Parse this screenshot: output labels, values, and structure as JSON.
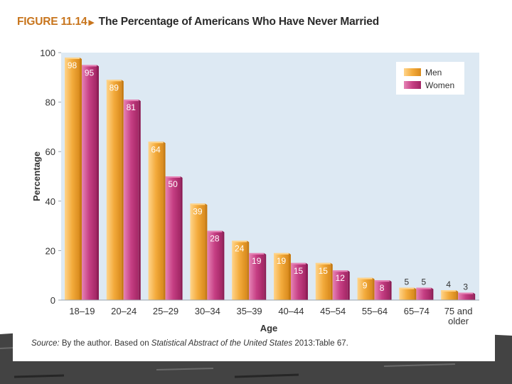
{
  "figure": {
    "label": "FIGURE 11.14",
    "title": "The Percentage of Americans Who Have Never Married"
  },
  "source": {
    "lead": "Source:",
    "text_before": " By the author. Based on ",
    "publication": "Statistical Abstract of the United States",
    "text_after": " 2013:Table 67."
  },
  "colors": {
    "plot_bg": "#dde9f3",
    "men": "#f0a233",
    "men_light": "#ffd48a",
    "men_dark": "#c77c14",
    "women": "#c2387e",
    "women_light": "#e684b6",
    "women_dark": "#8f1f57"
  },
  "chart_data": {
    "type": "bar",
    "xlabel": "Age",
    "ylabel": "Percentage",
    "ylim": [
      0,
      100
    ],
    "yticks": [
      0,
      20,
      40,
      60,
      80,
      100
    ],
    "categories": [
      "18–19",
      "20–24",
      "25–29",
      "30–34",
      "35–39",
      "40–44",
      "45–54",
      "55–64",
      "65–74",
      "75 and older"
    ],
    "category_lines": [
      [
        "18–19"
      ],
      [
        "20–24"
      ],
      [
        "25–29"
      ],
      [
        "30–34"
      ],
      [
        "35–39"
      ],
      [
        "40–44"
      ],
      [
        "45–54"
      ],
      [
        "55–64"
      ],
      [
        "65–74"
      ],
      [
        "75 and",
        "older"
      ]
    ],
    "series": [
      {
        "name": "Men",
        "values": [
          98,
          89,
          64,
          39,
          24,
          19,
          15,
          9,
          5,
          4
        ]
      },
      {
        "name": "Women",
        "values": [
          95,
          81,
          50,
          28,
          19,
          15,
          12,
          8,
          5,
          3
        ]
      }
    ],
    "legend": {
      "position": "top-right",
      "entries": [
        "Men",
        "Women"
      ]
    }
  }
}
